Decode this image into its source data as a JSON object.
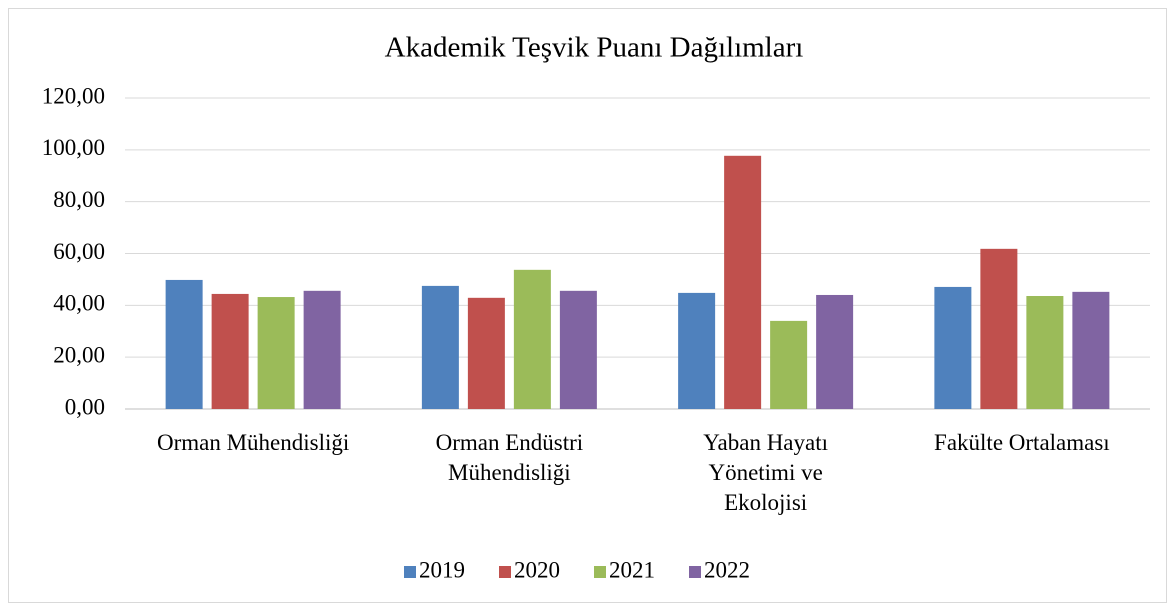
{
  "chart_data": {
    "type": "bar",
    "title": "Akademik Teşvik Puanı Dağılımları",
    "categories": [
      "Orman Mühendisliği",
      "Orman Endüstri\nMühendisliği",
      "Yaban Hayatı\nYönetimi ve\nEkolojisi",
      "Fakülte Ortalaması"
    ],
    "series": [
      {
        "name": "2019",
        "color": "#4f81bd",
        "values": [
          49.8,
          47.5,
          44.8,
          47.1
        ]
      },
      {
        "name": "2020",
        "color": "#c0504d",
        "values": [
          44.4,
          42.9,
          97.7,
          61.8
        ]
      },
      {
        "name": "2021",
        "color": "#9bbb59",
        "values": [
          43.2,
          53.7,
          34.0,
          43.6
        ]
      },
      {
        "name": "2022",
        "color": "#8064a2",
        "values": [
          45.6,
          45.6,
          44.0,
          45.2
        ]
      }
    ],
    "ylim": [
      0,
      120
    ],
    "yticks": [
      {
        "value": 0,
        "label": "0,00"
      },
      {
        "value": 20,
        "label": "20,00"
      },
      {
        "value": 40,
        "label": "40,00"
      },
      {
        "value": 60,
        "label": "60,00"
      },
      {
        "value": 80,
        "label": "80,00"
      },
      {
        "value": 100,
        "label": "100,00"
      },
      {
        "value": 120,
        "label": "120,00"
      }
    ],
    "grid": true,
    "legend": "bottom"
  }
}
